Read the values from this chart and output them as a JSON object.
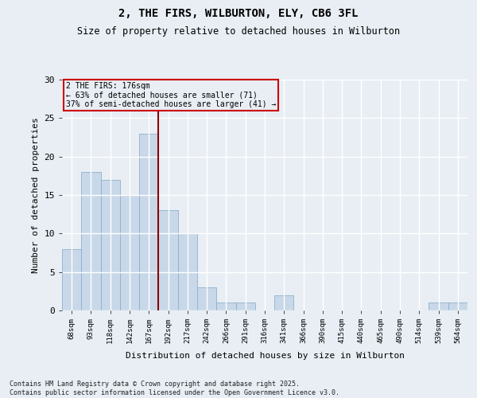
{
  "title": "2, THE FIRS, WILBURTON, ELY, CB6 3FL",
  "subtitle": "Size of property relative to detached houses in Wilburton",
  "xlabel": "Distribution of detached houses by size in Wilburton",
  "ylabel": "Number of detached properties",
  "categories": [
    "68sqm",
    "93sqm",
    "118sqm",
    "142sqm",
    "167sqm",
    "192sqm",
    "217sqm",
    "242sqm",
    "266sqm",
    "291sqm",
    "316sqm",
    "341sqm",
    "366sqm",
    "390sqm",
    "415sqm",
    "440sqm",
    "465sqm",
    "490sqm",
    "514sqm",
    "539sqm",
    "564sqm"
  ],
  "values": [
    8,
    18,
    17,
    15,
    23,
    13,
    10,
    3,
    1,
    1,
    0,
    2,
    0,
    0,
    0,
    0,
    0,
    0,
    0,
    1,
    1
  ],
  "bar_color": "#c8d8e8",
  "bar_edge_color": "#8fb0cc",
  "ylim": [
    0,
    30
  ],
  "yticks": [
    0,
    5,
    10,
    15,
    20,
    25,
    30
  ],
  "annotation_text": "2 THE FIRS: 176sqm\n← 63% of detached houses are smaller (71)\n37% of semi-detached houses are larger (41) →",
  "vline_x_index": 4.5,
  "vline_color": "#8b0000",
  "box_color": "#cc0000",
  "footer_text": "Contains HM Land Registry data © Crown copyright and database right 2025.\nContains public sector information licensed under the Open Government Licence v3.0.",
  "background_color": "#e8eef4",
  "grid_color": "#ffffff"
}
